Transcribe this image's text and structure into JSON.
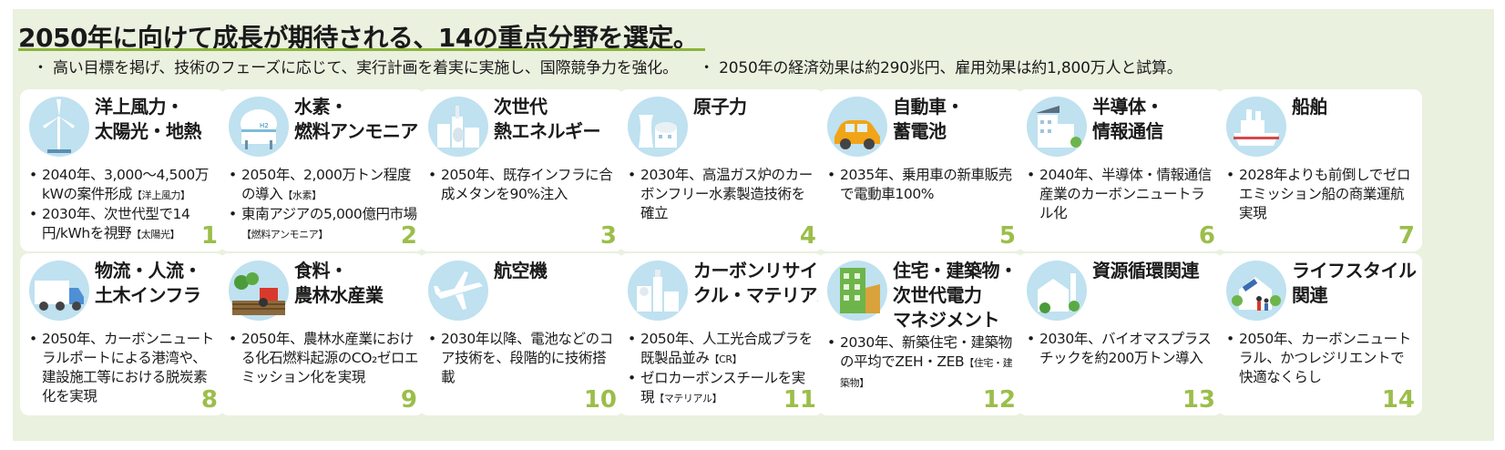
{
  "title": "2050年に向けて成長が期待される、14の重点分野を選定。",
  "subtitle": [
    "・ 高い目標を掲げ、技術のフェーズに応じて、実行計画を着実に実施し、国際競争力を強化。",
    "・ 2050年の経済効果は約290兆円、雇用効果は約1,800万人と試算。"
  ],
  "colors": {
    "background": "#eaf1df",
    "number": "#9bbe4a",
    "underline": "#8cb43c",
    "icon_bg": "#bfe1f0"
  },
  "cards": [
    {
      "title_lines": [
        "洋上風力・",
        "太陽光・地熱"
      ],
      "icon": "wind-turbine-icon",
      "bullets": [
        {
          "text": "2040年、3,000～4,500万kWの案件形成",
          "tag": "【洋上風力】"
        },
        {
          "text": "2030年、次世代型で14円/kWhを視野",
          "tag": "【太陽光】"
        }
      ],
      "number": "1"
    },
    {
      "title_lines": [
        "水素・",
        "燃料アンモニア"
      ],
      "icon": "hydrogen-tank-icon",
      "bullets": [
        {
          "text": "2050年、2,000万トン程度の導入",
          "tag": "【水素】"
        },
        {
          "text": "東南アジアの5,000億円市場",
          "tag": "【燃料アンモニア】"
        }
      ],
      "number": "2"
    },
    {
      "title_lines": [
        "次世代",
        "熱エネルギー"
      ],
      "icon": "factory-icon",
      "bullets": [
        {
          "text": "2050年、既存インフラに合成メタンを90%注入",
          "tag": ""
        }
      ],
      "number": "3"
    },
    {
      "title_lines": [
        "原子力"
      ],
      "icon": "nuclear-plant-icon",
      "bullets": [
        {
          "text": "2030年、高温ガス炉のカーボンフリー水素製造技術を確立",
          "tag": ""
        }
      ],
      "number": "4"
    },
    {
      "title_lines": [
        "自動車・",
        "蓄電池"
      ],
      "icon": "car-icon",
      "bullets": [
        {
          "text": "2035年、乗用車の新車販売で電動車100%",
          "tag": ""
        }
      ],
      "number": "5"
    },
    {
      "title_lines": [
        "半導体・",
        "情報通信"
      ],
      "icon": "building-solar-icon",
      "bullets": [
        {
          "text": "2040年、半導体・情報通信産業のカーボンニュートラル化",
          "tag": ""
        }
      ],
      "number": "6"
    },
    {
      "title_lines": [
        "船舶"
      ],
      "icon": "ship-icon",
      "bullets": [
        {
          "text": "2028年よりも前倒しでゼロエミッション船の商業運航実現",
          "tag": ""
        }
      ],
      "number": "7"
    },
    {
      "title_lines": [
        "物流・人流・",
        "土木インフラ"
      ],
      "icon": "truck-icon",
      "bullets": [
        {
          "text": "2050年、カーボンニュートラルポートによる港湾や、建設施工等における脱炭素化を実現",
          "tag": ""
        }
      ],
      "number": "8"
    },
    {
      "title_lines": [
        "食料・",
        "農林水産業"
      ],
      "icon": "farm-icon",
      "bullets": [
        {
          "text": "2050年、農林水産業における化石燃料起源のCO₂ゼロエミッション化を実現",
          "tag": ""
        }
      ],
      "number": "9"
    },
    {
      "title_lines": [
        "航空機"
      ],
      "icon": "airplane-icon",
      "bullets": [
        {
          "text": "2030年以降、電池などのコア技術を、段階的に技術搭載",
          "tag": ""
        }
      ],
      "number": "10"
    },
    {
      "title_lines": [
        "カーボンリサイ",
        "クル・マテリアル"
      ],
      "icon": "recycle-plant-icon",
      "bullets": [
        {
          "text": "2050年、人工光合成プラを既製品並み",
          "tag": "【CR】"
        },
        {
          "text": "ゼロカーボンスチールを実現",
          "tag": "【マテリアル】"
        }
      ],
      "number": "11"
    },
    {
      "title_lines": [
        "住宅・建築物・",
        "次世代電力",
        "マネジメント"
      ],
      "icon": "green-building-icon",
      "bullets": [
        {
          "text": "2030年、新築住宅・建築物の平均でZEH・ZEB",
          "tag": "【住宅・建築物】"
        }
      ],
      "number": "12"
    },
    {
      "title_lines": [
        "資源循環関連"
      ],
      "icon": "recycling-facility-icon",
      "bullets": [
        {
          "text": "2030年、バイオマスプラスチックを約200万トン導入",
          "tag": ""
        }
      ],
      "number": "13"
    },
    {
      "title_lines": [
        "ライフスタイル",
        "関連"
      ],
      "icon": "family-house-icon",
      "bullets": [
        {
          "text": "2050年、カーボンニュートラル、かつレジリエントで快適なくらし",
          "tag": ""
        }
      ],
      "number": "14"
    }
  ]
}
